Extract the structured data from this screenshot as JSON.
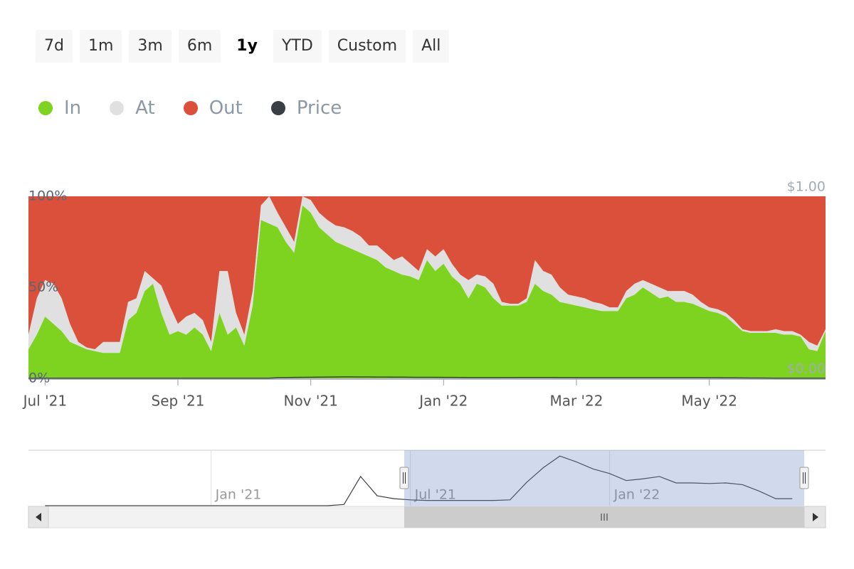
{
  "chart_data": {
    "type": "area",
    "stacking": "percent",
    "range_selector": {
      "buttons": [
        "7d",
        "1m",
        "3m",
        "6m",
        "1y",
        "YTD",
        "Custom",
        "All"
      ],
      "selected": 4
    },
    "categories": [
      null,
      null,
      "Jul '21",
      null,
      null,
      null,
      null,
      null,
      null,
      null,
      null,
      null,
      null,
      null,
      null,
      null,
      null,
      null,
      "Sep '21",
      null,
      null,
      null,
      null,
      null,
      null,
      null,
      null,
      null,
      null,
      null,
      null,
      null,
      null,
      null,
      "Nov '21",
      null,
      null,
      null,
      null,
      null,
      null,
      null,
      null,
      null,
      null,
      null,
      null,
      null,
      null,
      null,
      "Jan '22",
      null,
      null,
      null,
      null,
      null,
      null,
      null,
      null,
      null,
      null,
      null,
      null,
      null,
      null,
      null,
      "Mar '22",
      null,
      null,
      null,
      null,
      null,
      null,
      null,
      null,
      null,
      null,
      null,
      null,
      null,
      null,
      null,
      "May '22",
      null,
      null,
      null,
      null,
      null,
      null,
      null,
      null,
      null,
      null,
      null,
      null,
      null,
      null
    ],
    "series": [
      {
        "name": "In",
        "color": "#7ed321",
        "values": [
          16,
          24,
          34,
          30,
          26,
          20,
          18,
          16,
          15,
          14,
          14,
          14,
          32,
          36,
          48,
          52,
          36,
          24,
          26,
          24,
          28,
          24,
          15,
          36,
          24,
          28,
          18,
          40,
          87,
          85,
          83,
          75,
          69,
          95,
          91,
          83,
          79,
          75,
          73,
          71,
          69,
          67,
          65,
          61,
          59,
          57,
          56,
          54,
          65,
          59,
          63,
          56,
          52,
          44,
          52,
          50,
          44,
          40,
          40,
          40,
          42,
          52,
          48,
          46,
          42,
          41,
          40,
          39,
          38,
          37,
          37,
          37,
          44,
          46,
          50,
          47,
          44,
          45,
          42,
          42,
          41,
          39,
          37,
          36,
          34,
          30,
          26,
          25,
          25,
          25,
          25,
          24,
          24,
          23,
          16,
          15,
          26
        ]
      },
      {
        "name": "At",
        "color": "#e0e0e0",
        "values": [
          8,
          20,
          20,
          22,
          18,
          10,
          2,
          1,
          1,
          6,
          6,
          6,
          10,
          8,
          11,
          3,
          15,
          16,
          4,
          10,
          8,
          8,
          5,
          23,
          35,
          8,
          6,
          8,
          8,
          15,
          8,
          8,
          6,
          5,
          7,
          8,
          8,
          9,
          10,
          10,
          9,
          6,
          8,
          8,
          6,
          10,
          7,
          5,
          6,
          8,
          8,
          7,
          5,
          10,
          5,
          6,
          8,
          2,
          1,
          1,
          2,
          13,
          11,
          11,
          8,
          5,
          5,
          5,
          4,
          4,
          2,
          2,
          4,
          6,
          4,
          5,
          6,
          3,
          6,
          6,
          5,
          3,
          2,
          2,
          2,
          2,
          1,
          1,
          1,
          1,
          2,
          2,
          2,
          1,
          4,
          3,
          1
        ]
      },
      {
        "name": "Out",
        "color": "#db503a",
        "values": [
          76,
          56,
          46,
          48,
          56,
          70,
          80,
          83,
          84,
          80,
          80,
          80,
          58,
          56,
          41,
          45,
          49,
          60,
          70,
          66,
          64,
          68,
          80,
          41,
          41,
          64,
          76,
          52,
          5,
          0,
          9,
          17,
          25,
          0,
          2,
          9,
          13,
          16,
          17,
          19,
          22,
          27,
          27,
          31,
          35,
          33,
          37,
          41,
          29,
          33,
          29,
          37,
          43,
          46,
          43,
          44,
          48,
          58,
          59,
          59,
          56,
          35,
          41,
          43,
          50,
          54,
          55,
          56,
          58,
          59,
          61,
          61,
          52,
          48,
          46,
          48,
          50,
          52,
          52,
          52,
          54,
          58,
          61,
          62,
          64,
          68,
          73,
          74,
          74,
          74,
          73,
          74,
          74,
          76,
          80,
          82,
          73
        ]
      },
      {
        "name": "Price",
        "color": "#3a3f45",
        "axis": "y2",
        "values": [
          0.001,
          0.001,
          0.001,
          0.001,
          0.001,
          0.001,
          0.001,
          0.001,
          0.001,
          0.001,
          0.001,
          0.001,
          0.0009,
          0.0009,
          0.0009,
          0.0009,
          0.0009,
          0.0009,
          0.0009,
          0.0009,
          0.0009,
          0.0009,
          0.0009,
          0.0009,
          0.0009,
          0.0009,
          0.001,
          0.001,
          0.001,
          0.001,
          0.004,
          0.0046,
          0.0052,
          0.0058,
          0.0065,
          0.007,
          0.0075,
          0.008,
          0.0085,
          0.0082,
          0.008,
          0.0077,
          0.0075,
          0.0072,
          0.0069,
          0.0066,
          0.0063,
          0.0061,
          0.0059,
          0.0057,
          0.0055,
          0.0052,
          0.0049,
          0.0046,
          0.0043,
          0.0044,
          0.0045,
          0.0046,
          0.0046,
          0.0047,
          0.0048,
          0.0049,
          0.005,
          0.0047,
          0.0044,
          0.0042,
          0.0039,
          0.0039,
          0.0039,
          0.0039,
          0.0039,
          0.0039,
          0.0039,
          0.0039,
          0.0039,
          0.0039,
          0.0039,
          0.0039,
          0.0039,
          0.0039,
          0.0039,
          0.0038,
          0.0036,
          0.0033,
          0.0031,
          0.0028,
          0.0025,
          0.0022,
          0.0018,
          0.0015,
          0.0012,
          0.0012,
          0.0012,
          0.0012,
          0.0012,
          0.0012,
          0.0012
        ]
      }
    ],
    "ylim": [
      0,
      100
    ],
    "yticks": [
      {
        "value": 0,
        "label": "0%"
      },
      {
        "value": 50,
        "label": "50%"
      },
      {
        "value": 100,
        "label": "100%"
      }
    ],
    "y2lim": [
      0,
      1
    ],
    "y2ticks": [
      {
        "value": 0,
        "label": "$0.00"
      },
      {
        "value": 1,
        "label": "$1.00"
      }
    ],
    "grid": false,
    "navigator": {
      "categories": [
        null,
        null,
        null,
        null,
        null,
        null,
        null,
        null,
        null,
        null,
        null,
        "Jan '21",
        null,
        null,
        null,
        null,
        null,
        null,
        null,
        null,
        null,
        null,
        null,
        "Jul '21",
        null,
        null,
        null,
        null,
        null,
        null,
        null,
        null,
        null,
        null,
        null,
        "Jan '22",
        null,
        null,
        null,
        null,
        null,
        null,
        null,
        null,
        null,
        null,
        null,
        null,
        null
      ],
      "values": [
        null,
        0,
        0,
        0,
        0,
        0,
        0,
        0,
        0,
        0,
        0,
        0,
        0,
        0,
        0,
        0,
        0,
        0,
        0,
        0.0002,
        0.005,
        0.0017,
        0.0012,
        0.001,
        0.0009,
        0.0009,
        0.0009,
        0.0009,
        0.0009,
        0.001,
        0.004,
        0.0065,
        0.0085,
        0.0075,
        0.0063,
        0.0055,
        0.0043,
        0.0046,
        0.005,
        0.0039,
        0.0039,
        0.0038,
        0.0039,
        0.0036,
        0.0025,
        0.0012,
        0.0012,
        null,
        null
      ],
      "ylim": [
        0,
        0.0095
      ],
      "color": "#3a3f45"
    }
  }
}
